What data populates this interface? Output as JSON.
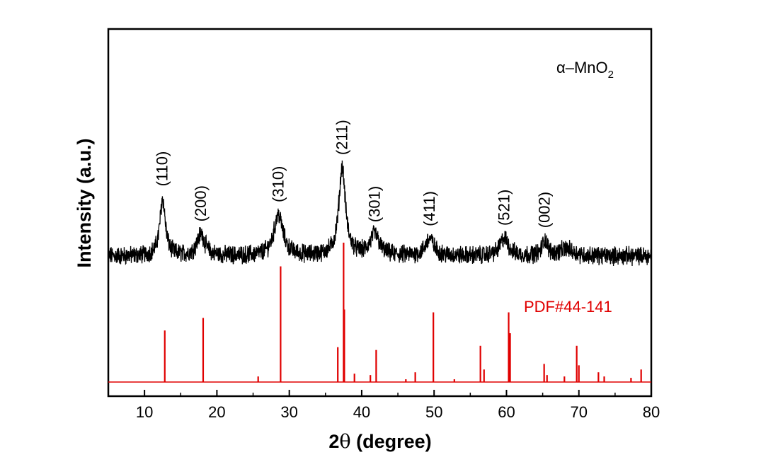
{
  "chart_data": {
    "type": "line",
    "xlabel_prefix": "2",
    "xlabel_symbol": "θ",
    "xlabel_rest": " (degree)",
    "ylabel": "Intensity (a.u.)",
    "xlim": [
      5,
      80
    ],
    "xticks": [
      10,
      20,
      30,
      40,
      50,
      60,
      70,
      80
    ],
    "grid": false,
    "phase_label": "α–MnO",
    "phase_subscript": "2",
    "colors": {
      "sample": "#000000",
      "reference": "#e00000"
    },
    "sample_peaks": [
      {
        "x": 12.5,
        "h": 1.0,
        "w": 0.45,
        "label": "(110)"
      },
      {
        "x": 17.8,
        "h": 0.38,
        "w": 0.65,
        "label": "(200)"
      },
      {
        "x": 28.5,
        "h": 0.72,
        "w": 0.75,
        "label": "(310)"
      },
      {
        "x": 37.3,
        "h": 1.55,
        "w": 0.55,
        "label": "(211)"
      },
      {
        "x": 41.8,
        "h": 0.37,
        "w": 0.75,
        "label": "(301)"
      },
      {
        "x": 49.4,
        "h": 0.3,
        "w": 0.7,
        "label": "(411)"
      },
      {
        "x": 59.7,
        "h": 0.31,
        "w": 0.7,
        "label": "(521)"
      },
      {
        "x": 65.3,
        "h": 0.27,
        "w": 0.45,
        "label": "(002)"
      },
      {
        "x": 68.3,
        "h": 0.12,
        "w": 1.1,
        "label": ""
      }
    ],
    "reference_label": "PDF#44-141",
    "reference_lines": [
      {
        "x": 12.8,
        "h": 0.37
      },
      {
        "x": 18.1,
        "h": 0.46
      },
      {
        "x": 25.7,
        "h": 0.04
      },
      {
        "x": 28.8,
        "h": 0.83
      },
      {
        "x": 36.7,
        "h": 0.25
      },
      {
        "x": 37.5,
        "h": 1.0
      },
      {
        "x": 37.6,
        "h": 0.52
      },
      {
        "x": 39.0,
        "h": 0.06
      },
      {
        "x": 41.2,
        "h": 0.05
      },
      {
        "x": 42.0,
        "h": 0.23
      },
      {
        "x": 46.1,
        "h": 0.02
      },
      {
        "x": 47.4,
        "h": 0.07
      },
      {
        "x": 49.9,
        "h": 0.5
      },
      {
        "x": 52.8,
        "h": 0.02
      },
      {
        "x": 56.4,
        "h": 0.26
      },
      {
        "x": 56.9,
        "h": 0.09
      },
      {
        "x": 60.3,
        "h": 0.5
      },
      {
        "x": 60.5,
        "h": 0.35
      },
      {
        "x": 65.2,
        "h": 0.13
      },
      {
        "x": 65.6,
        "h": 0.05
      },
      {
        "x": 68.0,
        "h": 0.04
      },
      {
        "x": 69.7,
        "h": 0.26
      },
      {
        "x": 70.0,
        "h": 0.12
      },
      {
        "x": 72.7,
        "h": 0.07
      },
      {
        "x": 73.5,
        "h": 0.04
      },
      {
        "x": 78.6,
        "h": 0.09
      },
      {
        "x": 77.2,
        "h": 0.03
      }
    ]
  }
}
